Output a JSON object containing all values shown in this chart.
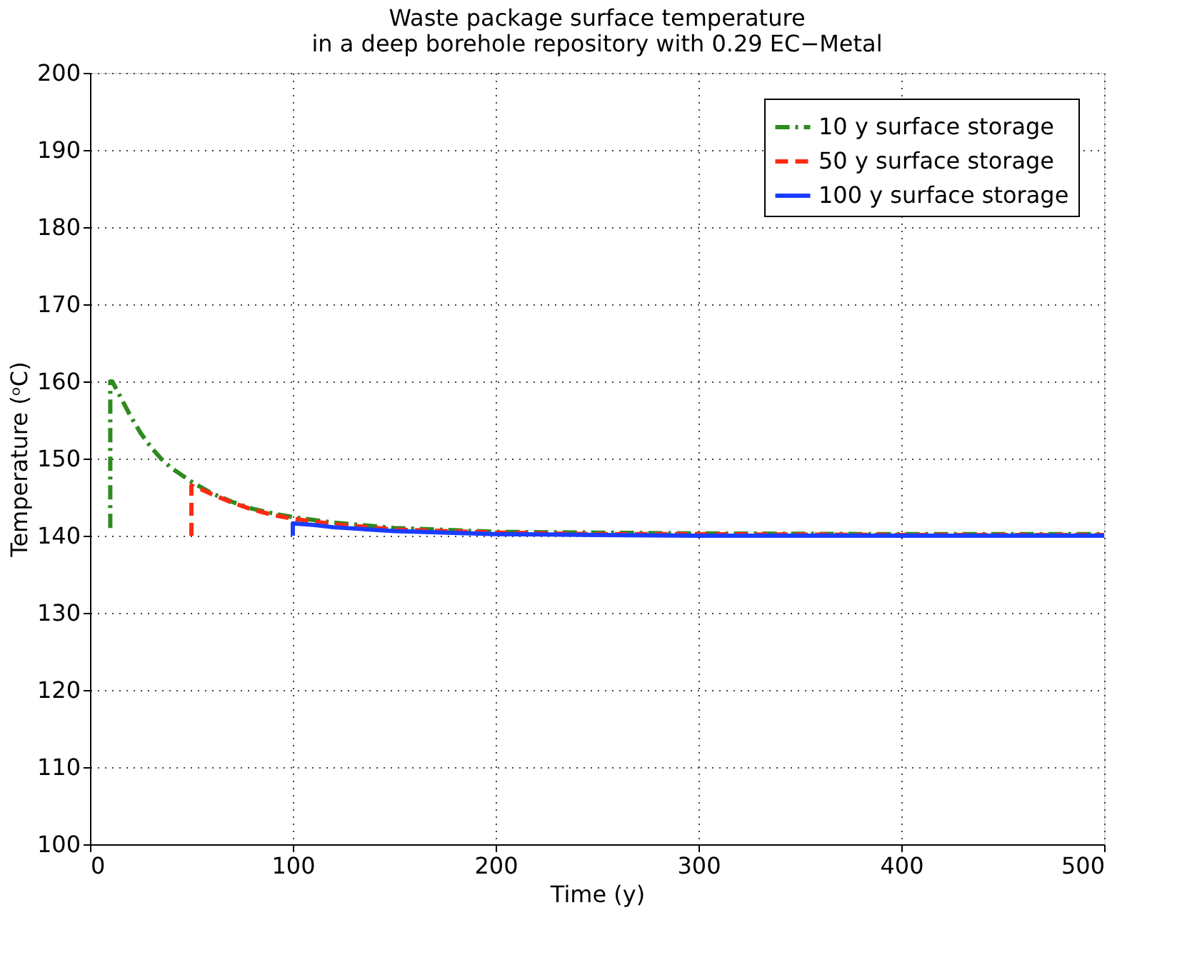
{
  "chart_data": {
    "type": "line",
    "title": "Waste package surface temperature\nin a deep borehole repository with 0.29 EC−Metal",
    "xlabel": "Time (y)",
    "ylabel": "Temperature (ᵒC)",
    "xlim": [
      0,
      500
    ],
    "xticks": [
      0,
      100,
      200,
      300,
      400,
      500
    ],
    "ylim": [
      100,
      200
    ],
    "yticks": [
      100,
      110,
      120,
      130,
      140,
      150,
      160,
      170,
      180,
      190,
      200
    ],
    "grid": true,
    "legend": "top right",
    "marker": "none",
    "series": [
      {
        "name": "10 y surface storage",
        "color": "#2e8b1e",
        "line_style": "dashdot",
        "x": [
          10,
          10,
          11,
          15,
          20,
          25,
          30,
          35,
          40,
          50,
          60,
          70,
          80,
          90,
          100,
          120,
          150,
          200,
          250,
          300,
          400,
          500
        ],
        "values": [
          141,
          160,
          160,
          158,
          155.5,
          153.3,
          151.5,
          150,
          148.8,
          147,
          145.5,
          144.4,
          143.5,
          142.9,
          142.4,
          141.7,
          141,
          140.5,
          140.4,
          140.3,
          140.2,
          140.2
        ]
      },
      {
        "name": "50 y surface storage",
        "color": "#ff2a12",
        "line_style": "dashed",
        "x": [
          50,
          50,
          55,
          60,
          70,
          80,
          90,
          100,
          120,
          150,
          200,
          250,
          300,
          400,
          500
        ],
        "values": [
          140,
          146.5,
          146,
          145.4,
          144.3,
          143.4,
          142.7,
          142.2,
          141.5,
          140.8,
          140.4,
          140.2,
          140.2,
          140.1,
          140.1
        ]
      },
      {
        "name": "100 y surface storage",
        "color": "#1a3cff",
        "line_style": "solid",
        "x": [
          100,
          100,
          110,
          120,
          150,
          200,
          250,
          300,
          400,
          500
        ],
        "values": [
          140,
          141.6,
          141.4,
          141.1,
          140.6,
          140.2,
          140.1,
          140,
          140,
          140
        ]
      }
    ]
  }
}
